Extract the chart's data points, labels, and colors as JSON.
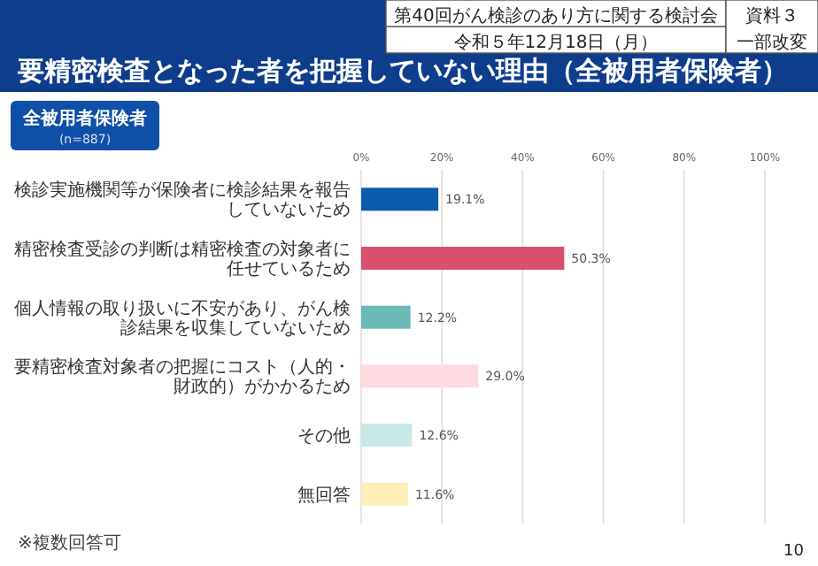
{
  "chart_data": {
    "type": "bar",
    "orientation": "horizontal",
    "title": "要精密検査となった者を把握していない理由（全被用者保険者）",
    "subtitle": "全被用者保険者",
    "categories": [
      "検診実施機関等が保険者に検診結果を報告していないため",
      "精密検査受診の判断は精密検査の対象者に任せているため",
      "個人情報の取り扱いに不安があり、がん検診結果を収集していないため",
      "要精密検査対象者の把握にコスト（人的・財政的）がかかるため",
      "その他",
      "無回答"
    ],
    "values": [
      19.1,
      50.3,
      12.2,
      29.0,
      12.6,
      11.6
    ],
    "value_labels": [
      "19.1%",
      "50.3%",
      "12.2%",
      "29.0%",
      "12.6%",
      "11.6%"
    ],
    "colors": [
      "#0b5cad",
      "#d94f6e",
      "#6bbab5",
      "#fddbe0",
      "#c8e8e8",
      "#fdf0b6"
    ],
    "xlim": [
      0,
      100
    ],
    "xticks": [
      {
        "value": 0,
        "label": "0%"
      },
      {
        "value": 20,
        "label": "20%"
      },
      {
        "value": 40,
        "label": "40%"
      },
      {
        "value": 60,
        "label": "60%"
      },
      {
        "value": 80,
        "label": "80%"
      },
      {
        "value": 100,
        "label": "100%"
      }
    ],
    "grid": "x",
    "annotations": [
      "(n=887)",
      "※複数回答可",
      "第40回がん検診のあり方に関する検討会",
      "令和５年12月18日（月）",
      "資料３",
      "一部改変",
      "10"
    ]
  }
}
